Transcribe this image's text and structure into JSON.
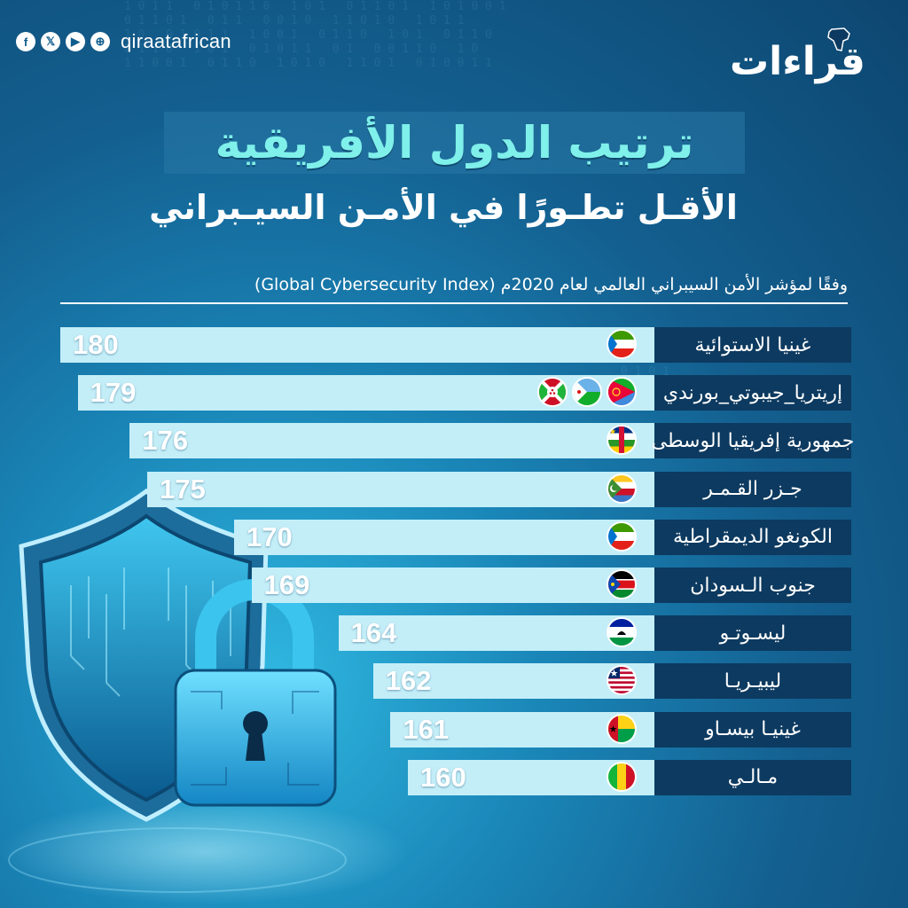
{
  "header": {
    "handle": "qiraatafrican",
    "social_icons": [
      "facebook-icon",
      "x-icon",
      "youtube-icon",
      "web-icon"
    ],
    "logo_text": "قراءات"
  },
  "title": "ترتيب الدول الأفريقية",
  "subtitle": "الأقـل تطـورًا في الأمـن السيـبراني",
  "source": "وفقًا لمؤشر الأمن السيبراني العالمي لعام 2020م (Global Cybersecurity Index)",
  "colors": {
    "bar": "#c3eef8",
    "label_box": "#0d3a60",
    "title": "#7ff0ea",
    "background": "#135f8f"
  },
  "chart_data": {
    "type": "bar",
    "orientation": "horizontal",
    "title": "ترتيب الدول الأفريقية",
    "subtitle": "الأقـل تطـورًا في الأمـن السيـبراني",
    "categories": [
      "غينيا الاستوائية",
      "إريتريا_جيبوتي_بورندي",
      "جمهورية إفريقيا الوسطى",
      "جـزر القـمـر",
      "الكونغو الديمقراطية",
      "جنوب الـسودان",
      "ليسـوتـو",
      "ليبيـريـا",
      "غينيـا بيسـاو",
      "مـالـي"
    ],
    "values": [
      180,
      179,
      176,
      175,
      170,
      169,
      164,
      162,
      161,
      160
    ],
    "flags": [
      [
        "equatorial-guinea-flag-icon"
      ],
      [
        "eritrea-flag-icon",
        "djibouti-flag-icon",
        "burundi-flag-icon"
      ],
      [
        "central-african-republic-flag-icon"
      ],
      [
        "comoros-flag-icon"
      ],
      [
        "equatorial-guinea-flag-icon"
      ],
      [
        "south-sudan-flag-icon"
      ],
      [
        "lesotho-flag-icon"
      ],
      [
        "liberia-flag-icon"
      ],
      [
        "guinea-bissau-flag-icon"
      ],
      [
        "mali-flag-icon"
      ]
    ],
    "xlim": [
      0,
      180
    ]
  }
}
